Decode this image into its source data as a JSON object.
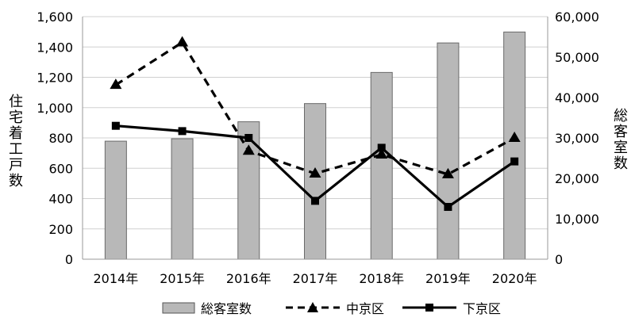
{
  "chart_data": {
    "type": "bar",
    "categories": [
      "2014年",
      "2015年",
      "2016年",
      "2017年",
      "2018年",
      "2019年",
      "2020年"
    ],
    "series": [
      {
        "name": "総客室数",
        "type": "bar",
        "axis": "right",
        "color": "#b8b8b8",
        "values": [
          29200,
          29800,
          34000,
          38500,
          46200,
          53500,
          56200
        ]
      },
      {
        "name": "中京区",
        "type": "line",
        "style": "dashed",
        "marker": "triangle",
        "axis": "left",
        "color": "#000000",
        "values": [
          1150,
          1430,
          715,
          565,
          690,
          560,
          800
        ]
      },
      {
        "name": "下京区",
        "type": "line",
        "style": "solid",
        "marker": "square",
        "axis": "left",
        "color": "#000000",
        "values": [
          880,
          845,
          800,
          385,
          735,
          345,
          645
        ]
      }
    ],
    "y_left": {
      "label": "住宅着工戸数",
      "lim": [
        0,
        1600
      ],
      "ticks": [
        0,
        200,
        400,
        600,
        800,
        1000,
        1200,
        1400,
        1600
      ],
      "tick_labels": [
        "0",
        "200",
        "400",
        "600",
        "800",
        "1,000",
        "1,200",
        "1,400",
        "1,600"
      ]
    },
    "y_right": {
      "label": "総客室数",
      "lim": [
        0,
        60000
      ],
      "ticks": [
        0,
        10000,
        20000,
        30000,
        40000,
        50000,
        60000
      ],
      "tick_labels": [
        "0",
        "10,000",
        "20,000",
        "30,000",
        "40,000",
        "50,000",
        "60,000"
      ]
    },
    "grid": true,
    "legend_position": "bottom"
  }
}
